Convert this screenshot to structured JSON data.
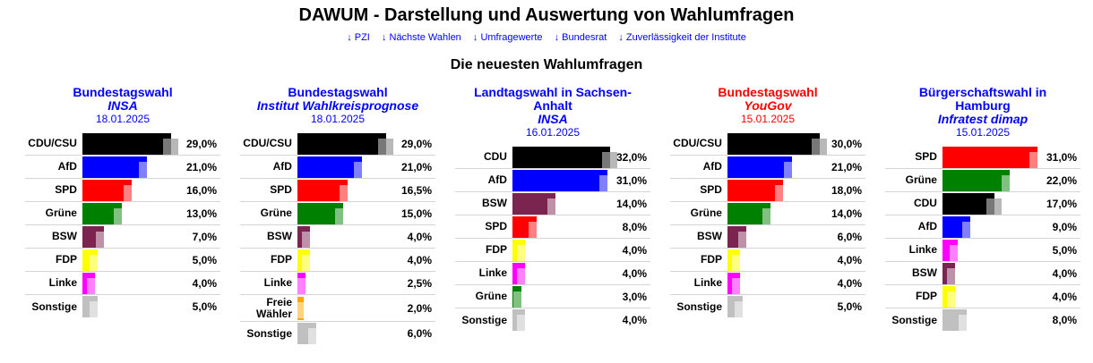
{
  "header": {
    "title": "DAWUM - Darstellung und Auswertung von Wahlumfragen",
    "nav_links": [
      {
        "arrow": "↓",
        "label": "PZI"
      },
      {
        "arrow": "↓",
        "label": "Nächste Wahlen"
      },
      {
        "arrow": "↓",
        "label": "Umfragewerte"
      },
      {
        "arrow": "↓",
        "label": "Bundesrat"
      },
      {
        "arrow": "↓",
        "label": "Zuverlässigkeit der Institute"
      }
    ],
    "subtitle": "Die neuesten Wahlumfragen"
  },
  "colors": {
    "CDU/CSU": "#000000",
    "CDU": "#000000",
    "AfD": "#0000ff",
    "SPD": "#ff0000",
    "Grüne": "#008000",
    "BSW": "#7b2450",
    "FDP": "#ffff00",
    "Linke": "#ff00ff",
    "Freie Wähler": "#ffa500",
    "Sonstige": "#c0c0c0",
    "link": "#0000ff",
    "highlight": "#ff0000"
  },
  "polls": [
    {
      "election": "Bundestagswahl",
      "institute": "INSA",
      "date": "18.01.2025",
      "theme": "blue",
      "results": [
        {
          "party": "CDU/CSU",
          "value": 29.0,
          "label": "29,0%"
        },
        {
          "party": "AfD",
          "value": 21.0,
          "label": "21,0%"
        },
        {
          "party": "SPD",
          "value": 16.0,
          "label": "16,0%"
        },
        {
          "party": "Grüne",
          "value": 13.0,
          "label": "13,0%"
        },
        {
          "party": "BSW",
          "value": 7.0,
          "label": "7,0%"
        },
        {
          "party": "FDP",
          "value": 5.0,
          "label": "5,0%"
        },
        {
          "party": "Linke",
          "value": 4.0,
          "label": "4,0%"
        },
        {
          "party": "Sonstige",
          "value": 5.0,
          "label": "5,0%"
        }
      ]
    },
    {
      "election": "Bundestagswahl",
      "institute": "Institut Wahlkreisprognose",
      "date": "18.01.2025",
      "theme": "blue",
      "results": [
        {
          "party": "CDU/CSU",
          "value": 29.0,
          "label": "29,0%"
        },
        {
          "party": "AfD",
          "value": 21.0,
          "label": "21,0%"
        },
        {
          "party": "SPD",
          "value": 16.5,
          "label": "16,5%"
        },
        {
          "party": "Grüne",
          "value": 15.0,
          "label": "15,0%"
        },
        {
          "party": "BSW",
          "value": 4.0,
          "label": "4,0%"
        },
        {
          "party": "FDP",
          "value": 4.0,
          "label": "4,0%"
        },
        {
          "party": "Linke",
          "value": 2.5,
          "label": "2,5%"
        },
        {
          "party": "Freie Wähler",
          "party_lines": [
            "Freie",
            "Wähler"
          ],
          "value": 2.0,
          "label": "2,0%"
        },
        {
          "party": "Sonstige",
          "value": 6.0,
          "label": "6,0%"
        }
      ]
    },
    {
      "election": "Landtagswahl in Sachsen-Anhalt",
      "election_lines": [
        "Landtagswahl in Sachsen-",
        "Anhalt"
      ],
      "institute": "INSA",
      "date": "16.01.2025",
      "theme": "blue",
      "results": [
        {
          "party": "CDU",
          "value": 32.0,
          "label": "32,0%"
        },
        {
          "party": "AfD",
          "value": 31.0,
          "label": "31,0%"
        },
        {
          "party": "BSW",
          "value": 14.0,
          "label": "14,0%"
        },
        {
          "party": "SPD",
          "value": 8.0,
          "label": "8,0%"
        },
        {
          "party": "FDP",
          "value": 4.0,
          "label": "4,0%"
        },
        {
          "party": "Linke",
          "value": 4.0,
          "label": "4,0%"
        },
        {
          "party": "Grüne",
          "value": 3.0,
          "label": "3,0%"
        },
        {
          "party": "Sonstige",
          "value": 4.0,
          "label": "4,0%"
        }
      ]
    },
    {
      "election": "Bundestagswahl",
      "institute": "YouGov",
      "date": "15.01.2025",
      "theme": "red",
      "results": [
        {
          "party": "CDU/CSU",
          "value": 30.0,
          "label": "30,0%"
        },
        {
          "party": "AfD",
          "value": 21.0,
          "label": "21,0%"
        },
        {
          "party": "SPD",
          "value": 18.0,
          "label": "18,0%"
        },
        {
          "party": "Grüne",
          "value": 14.0,
          "label": "14,0%"
        },
        {
          "party": "BSW",
          "value": 6.0,
          "label": "6,0%"
        },
        {
          "party": "FDP",
          "value": 4.0,
          "label": "4,0%"
        },
        {
          "party": "Linke",
          "value": 4.0,
          "label": "4,0%"
        },
        {
          "party": "Sonstige",
          "value": 5.0,
          "label": "5,0%"
        }
      ]
    },
    {
      "election": "Bürgerschaftswahl in Hamburg",
      "election_lines": [
        "Bürgerschaftswahl in",
        "Hamburg"
      ],
      "institute": "Infratest dimap",
      "date": "15.01.2025",
      "theme": "blue",
      "results": [
        {
          "party": "SPD",
          "value": 31.0,
          "label": "31,0%"
        },
        {
          "party": "Grüne",
          "value": 22.0,
          "label": "22,0%"
        },
        {
          "party": "CDU",
          "value": 17.0,
          "label": "17,0%"
        },
        {
          "party": "AfD",
          "value": 9.0,
          "label": "9,0%"
        },
        {
          "party": "Linke",
          "value": 5.0,
          "label": "5,0%"
        },
        {
          "party": "BSW",
          "value": 4.0,
          "label": "4,0%"
        },
        {
          "party": "FDP",
          "value": 4.0,
          "label": "4,0%"
        },
        {
          "party": "Sonstige",
          "value": 8.0,
          "label": "8,0%"
        }
      ]
    }
  ]
}
